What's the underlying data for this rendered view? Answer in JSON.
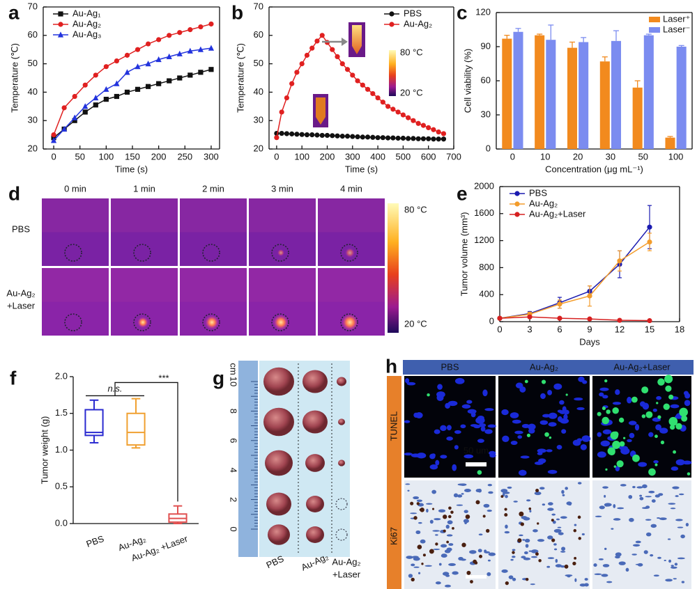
{
  "panel_labels": [
    "a",
    "b",
    "c",
    "d",
    "e",
    "f",
    "g",
    "h"
  ],
  "chart_data": [
    {
      "type": "line",
      "x_label": "Time (s)",
      "y_label": "Temperature (℃)",
      "xlim": [
        -20,
        316
      ],
      "ylim": [
        20,
        70
      ],
      "xticks": [
        0,
        50,
        100,
        150,
        200,
        250,
        300
      ],
      "yticks": [
        20,
        30,
        40,
        50,
        60,
        70
      ],
      "grid": false,
      "frame": true,
      "legend": "upper left",
      "x": [
        0,
        20,
        40,
        60,
        80,
        100,
        120,
        140,
        160,
        180,
        200,
        220,
        240,
        260,
        280,
        300
      ],
      "series": [
        {
          "name": "Au-Ag₁",
          "color": "#111111",
          "marker": "square",
          "values": [
            24,
            27,
            30,
            33,
            35.5,
            37.5,
            38.5,
            40,
            41,
            42,
            43,
            44,
            45,
            46,
            47,
            48
          ]
        },
        {
          "name": "Au-Ag₂",
          "color": "#e02020",
          "marker": "circle",
          "values": [
            25,
            34.5,
            38.5,
            42.5,
            46,
            49,
            51,
            53,
            55,
            57,
            58.5,
            60,
            61,
            62,
            63,
            64
          ]
        },
        {
          "name": "Au-Ag₃",
          "color": "#2233dd",
          "marker": "triangle",
          "values": [
            23,
            27,
            31,
            35,
            38,
            41,
            43,
            47,
            49,
            50,
            51.5,
            52.5,
            53.5,
            54.5,
            55,
            55.5
          ]
        }
      ]
    },
    {
      "type": "line",
      "x_label": "Time (s)",
      "y_label": "Temperature (℃)",
      "xlim": [
        -30,
        700
      ],
      "ylim": [
        20,
        70
      ],
      "xticks": [
        0,
        100,
        200,
        300,
        400,
        500,
        600,
        700
      ],
      "yticks": [
        20,
        30,
        40,
        50,
        60,
        70
      ],
      "grid": false,
      "frame": true,
      "legend": "upper right",
      "annotations": [
        "80 °C",
        "20 °C"
      ],
      "x": [
        0,
        20,
        40,
        60,
        80,
        100,
        120,
        140,
        160,
        180,
        200,
        220,
        240,
        260,
        280,
        300,
        320,
        340,
        360,
        380,
        400,
        420,
        440,
        460,
        480,
        500,
        520,
        540,
        560,
        580,
        600,
        620,
        640,
        660
      ],
      "series": [
        {
          "name": "PBS",
          "color": "#111111",
          "marker": "circle",
          "values": [
            25.5,
            25.5,
            25.4,
            25.3,
            25.2,
            25.1,
            25,
            25,
            24.9,
            24.8,
            24.8,
            24.7,
            24.6,
            24.5,
            24.5,
            24.4,
            24.3,
            24.2,
            24.2,
            24.1,
            24,
            24,
            23.9,
            23.9,
            23.8,
            23.8,
            23.7,
            23.7,
            23.6,
            23.6,
            23.6,
            23.5,
            23.5,
            23.5
          ]
        },
        {
          "name": "Au-Ag₂",
          "color": "#e02020",
          "marker": "circle",
          "values": [
            24,
            33,
            38,
            43,
            47,
            50,
            53,
            55.5,
            58,
            60,
            57.5,
            55,
            52.5,
            50,
            48,
            46,
            44,
            42.5,
            41,
            39.5,
            38,
            36.5,
            35,
            34,
            33,
            32,
            31,
            30,
            29,
            28.3,
            27.5,
            26.8,
            26,
            25.4
          ]
        }
      ]
    },
    {
      "type": "bar",
      "x_label": "Concentration (μg mL⁻¹)",
      "y_label": "Cell viability (%)",
      "categories": [
        "0",
        "10",
        "20",
        "30",
        "50",
        "100"
      ],
      "ylim": [
        0,
        120
      ],
      "yticks": [
        0,
        30,
        60,
        90,
        120
      ],
      "grid": false,
      "frame": true,
      "legend": "upper right",
      "series": [
        {
          "name": "Laser⁺",
          "color": "#f28a1e",
          "values": [
            97,
            100,
            89,
            77,
            54,
            10
          ],
          "errors": [
            3,
            1,
            5,
            4,
            6,
            1
          ]
        },
        {
          "name": "Laser⁻",
          "color": "#7b8cf0",
          "values": [
            103,
            96,
            94,
            95,
            100,
            90
          ],
          "errors": [
            3,
            13,
            4,
            9,
            1,
            1
          ]
        }
      ]
    },
    {
      "type": "line",
      "x_label": "Days",
      "y_label": "Tumor volume (mm³)",
      "xlim": [
        0,
        18
      ],
      "ylim": [
        0,
        2000
      ],
      "xticks": [
        0,
        3,
        6,
        9,
        12,
        15,
        18
      ],
      "yticks": [
        0,
        400,
        800,
        1200,
        1600,
        2000
      ],
      "grid": false,
      "frame": true,
      "legend": "upper left",
      "x": [
        0,
        3,
        6,
        9,
        12,
        15
      ],
      "series": [
        {
          "name": "PBS",
          "color": "#1a1ab0",
          "marker": "circle",
          "values": [
            50,
            120,
            280,
            450,
            850,
            1400
          ],
          "errors": [
            10,
            30,
            80,
            80,
            200,
            320
          ]
        },
        {
          "name": "Au-Ag₂",
          "color": "#f39c2b",
          "marker": "circle",
          "values": [
            50,
            110,
            260,
            380,
            900,
            1180
          ],
          "errors": [
            10,
            30,
            60,
            150,
            150,
            130
          ]
        },
        {
          "name": "Au-Ag₂+Laser",
          "color": "#d62020",
          "marker": "circle",
          "values": [
            50,
            70,
            50,
            40,
            20,
            15
          ],
          "errors": [
            5,
            10,
            10,
            10,
            5,
            5
          ]
        }
      ]
    },
    {
      "type": "box",
      "y_label": "Tumor weight (g)",
      "categories": [
        "PBS",
        "Au-Ag₂",
        "Au-Ag₂ +Laser"
      ],
      "ylim": [
        0,
        2
      ],
      "yticks": [
        {
          "value": 0,
          "label": "0.0"
        },
        {
          "value": 0.5,
          "label": "0.5"
        },
        {
          "value": 1,
          "label": "1.0"
        },
        {
          "value": 1.5,
          "label": "1.5"
        },
        {
          "value": 2,
          "label": "2.0"
        }
      ],
      "grid": false,
      "frame": false,
      "annotations": [
        "n.s.",
        "***"
      ],
      "colors": [
        "#2a2ad0",
        "#f0a030",
        "#e05050"
      ],
      "min": [
        1.1,
        1.03,
        0
      ],
      "q1": [
        1.2,
        1.07,
        0.02
      ],
      "median": [
        1.24,
        1.24,
        0.07
      ],
      "q3": [
        1.55,
        1.5,
        0.13
      ],
      "max": [
        1.68,
        1.7,
        0.24
      ]
    }
  ],
  "thermal_images": {
    "times": [
      "0 min",
      "1 min",
      "2 min",
      "3 min",
      "4 min"
    ],
    "rows": [
      [
        "PBS"
      ],
      [
        "Au-Ag₂",
        "+Laser"
      ]
    ],
    "colorbar": [
      "80 °C",
      "20 °C"
    ]
  },
  "tumor_photo": {
    "unit": "cm",
    "ruler": [
      "0",
      "2",
      "4",
      "6",
      "8",
      "10"
    ],
    "groups": [
      [
        "PBS"
      ],
      [
        "Au-Ag₂"
      ],
      [
        "Au-Ag₂",
        "+Laser"
      ]
    ]
  },
  "histology": {
    "columns": [
      "PBS",
      "Au-Ag₂",
      "Au-Ag₂+Laser"
    ],
    "rows": [
      "TUNEL",
      "Ki67"
    ],
    "scale_bar": "50 um"
  }
}
